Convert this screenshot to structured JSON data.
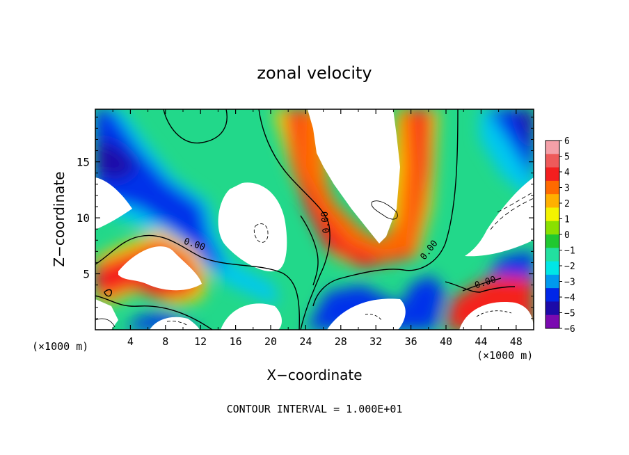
{
  "chart_data": {
    "type": "heatmap",
    "title": "zonal velocity",
    "xlabel": "X−coordinate",
    "ylabel": "Z−coordinate",
    "x_unit_left": "(×1000 m)",
    "x_unit_right": "(×1000 m)",
    "footer": "CONTOUR INTERVAL = 1.000E+01",
    "xlim": [
      0,
      50
    ],
    "ylim": [
      0,
      19.7
    ],
    "x_ticks": [
      4,
      8,
      12,
      16,
      20,
      24,
      28,
      32,
      36,
      40,
      44,
      48
    ],
    "x_tick_labels": [
      "4",
      "8",
      "12",
      "16",
      "20",
      "24",
      "28",
      "32",
      "36",
      "40",
      "44",
      "48"
    ],
    "y_ticks": [
      5,
      10,
      15
    ],
    "y_tick_labels": [
      "5",
      "10",
      "15"
    ],
    "colorbar": {
      "levels": [
        6,
        5,
        4,
        3,
        2,
        1,
        0,
        -1,
        -2,
        -3,
        -4,
        -5,
        -6
      ],
      "labels": [
        "6",
        "5",
        "4",
        "3",
        "2",
        "1",
        "0",
        "−1",
        "−2",
        "−3",
        "−4",
        "−5",
        "−6"
      ],
      "colors": [
        "#f4a0a8",
        "#ee5a5a",
        "#f31f1f",
        "#ff6a00",
        "#ffb000",
        "#f3f300",
        "#8ae000",
        "#20c830",
        "#22e0a0",
        "#00e6e6",
        "#0099ee",
        "#0026e8",
        "#1c0aa8",
        "#7a0ab0"
      ]
    },
    "contour_labels": [
      {
        "text": "0.00",
        "x": 11.3,
        "y": 7.6,
        "rot": 18
      },
      {
        "text": "0.00",
        "x": 26.3,
        "y": 9.6,
        "rot": -95
      },
      {
        "text": "0.00",
        "x": 38.1,
        "y": 7.1,
        "rot": -52
      },
      {
        "text": "0.00",
        "x": 44.5,
        "y": 4.2,
        "rot": -18
      }
    ]
  }
}
